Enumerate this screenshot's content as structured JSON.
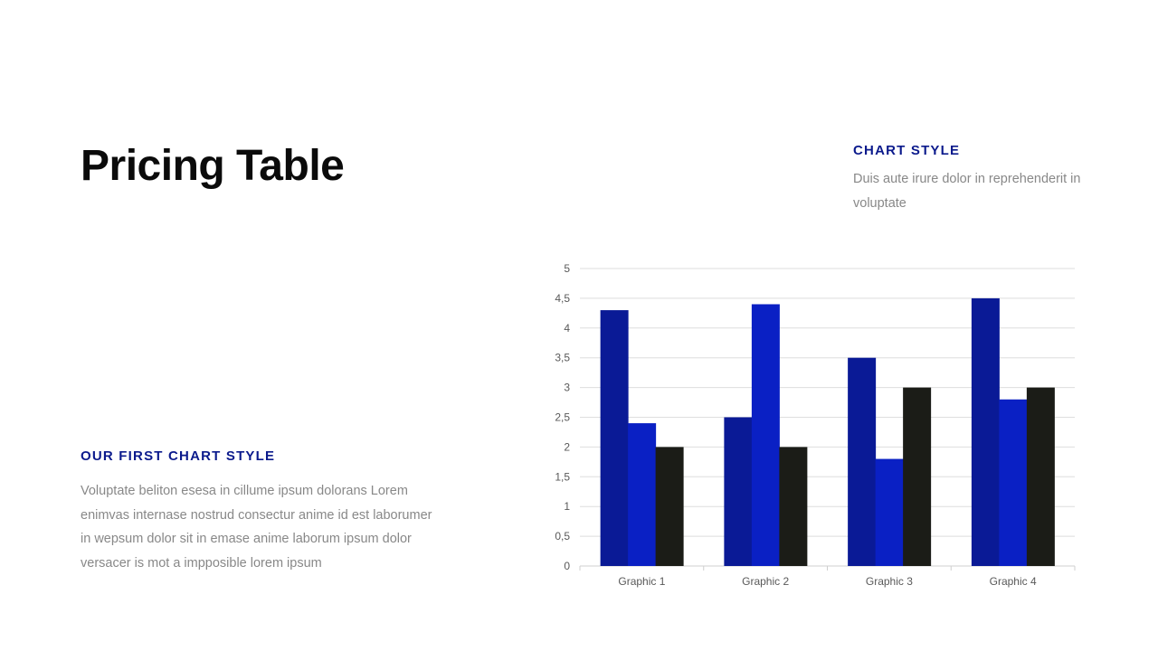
{
  "title": "Pricing Table",
  "right_block": {
    "heading": "CHART STYLE",
    "text": "Duis aute irure dolor in reprehenderit in voluptate"
  },
  "left_block": {
    "heading": "OUR FIRST CHART STYLE",
    "text": "Voluptate beliton esesa in cillume ipsum dolorans Lorem enimvas internase nostrud consectur anime id est laborumer in wepsum dolor sit in emase anime laborum ipsum dolor versacer is mot a impposible lorem ipsum"
  },
  "chart_data": {
    "type": "bar",
    "categories": [
      "Graphic 1",
      "Graphic 2",
      "Graphic 3",
      "Graphic 4"
    ],
    "series": [
      {
        "values": [
          4.3,
          2.5,
          3.5,
          4.5
        ],
        "color": "#0a1a96"
      },
      {
        "values": [
          2.4,
          4.4,
          1.8,
          2.8
        ],
        "color": "#0a20c4"
      },
      {
        "values": [
          2.0,
          2.0,
          3.0,
          3.0
        ],
        "color": "#1b1c17"
      }
    ],
    "ylim": [
      0,
      5
    ],
    "yticks": [
      "0",
      "0,5",
      "1",
      "1,5",
      "2",
      "2,5",
      "3",
      "3,5",
      "4",
      "4,5",
      "5"
    ],
    "grid": true,
    "legend": "none"
  }
}
